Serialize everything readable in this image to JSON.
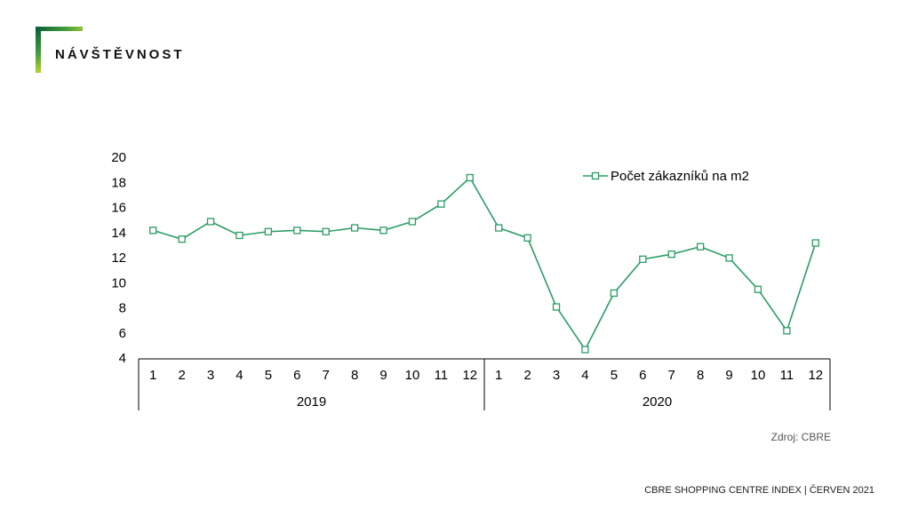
{
  "header": {
    "title": "NÁVŠTĚVNOST"
  },
  "source": "Zdroj: CBRE",
  "footer": {
    "text": "CBRE SHOPPING CENTRE INDEX  |  ČERVEN 2021"
  },
  "colors": {
    "series": "#2a9d64",
    "accent_dark": "#0b5e36",
    "accent_light": "#b5d334"
  },
  "chart_data": {
    "type": "line",
    "title": "",
    "xlabel": "",
    "ylabel": "",
    "ylim": [
      4,
      20
    ],
    "yticks": [
      4,
      6,
      8,
      10,
      12,
      14,
      16,
      18,
      20
    ],
    "grid": false,
    "legend_position": "top-right",
    "groups": [
      {
        "label": "2019",
        "categories": [
          "1",
          "2",
          "3",
          "4",
          "5",
          "6",
          "7",
          "8",
          "9",
          "10",
          "11",
          "12"
        ]
      },
      {
        "label": "2020",
        "categories": [
          "1",
          "2",
          "3",
          "4",
          "5",
          "6",
          "7",
          "8",
          "9",
          "10",
          "11",
          "12"
        ]
      }
    ],
    "series": [
      {
        "name": "Počet zákazníků na m2",
        "marker": "open-square",
        "values": [
          14.1,
          13.4,
          14.8,
          13.7,
          14.0,
          14.1,
          14.0,
          14.3,
          14.1,
          14.8,
          16.2,
          18.3,
          14.3,
          13.5,
          8.0,
          4.6,
          9.1,
          11.8,
          12.2,
          12.8,
          11.9,
          9.4,
          6.1,
          13.1
        ]
      }
    ]
  }
}
